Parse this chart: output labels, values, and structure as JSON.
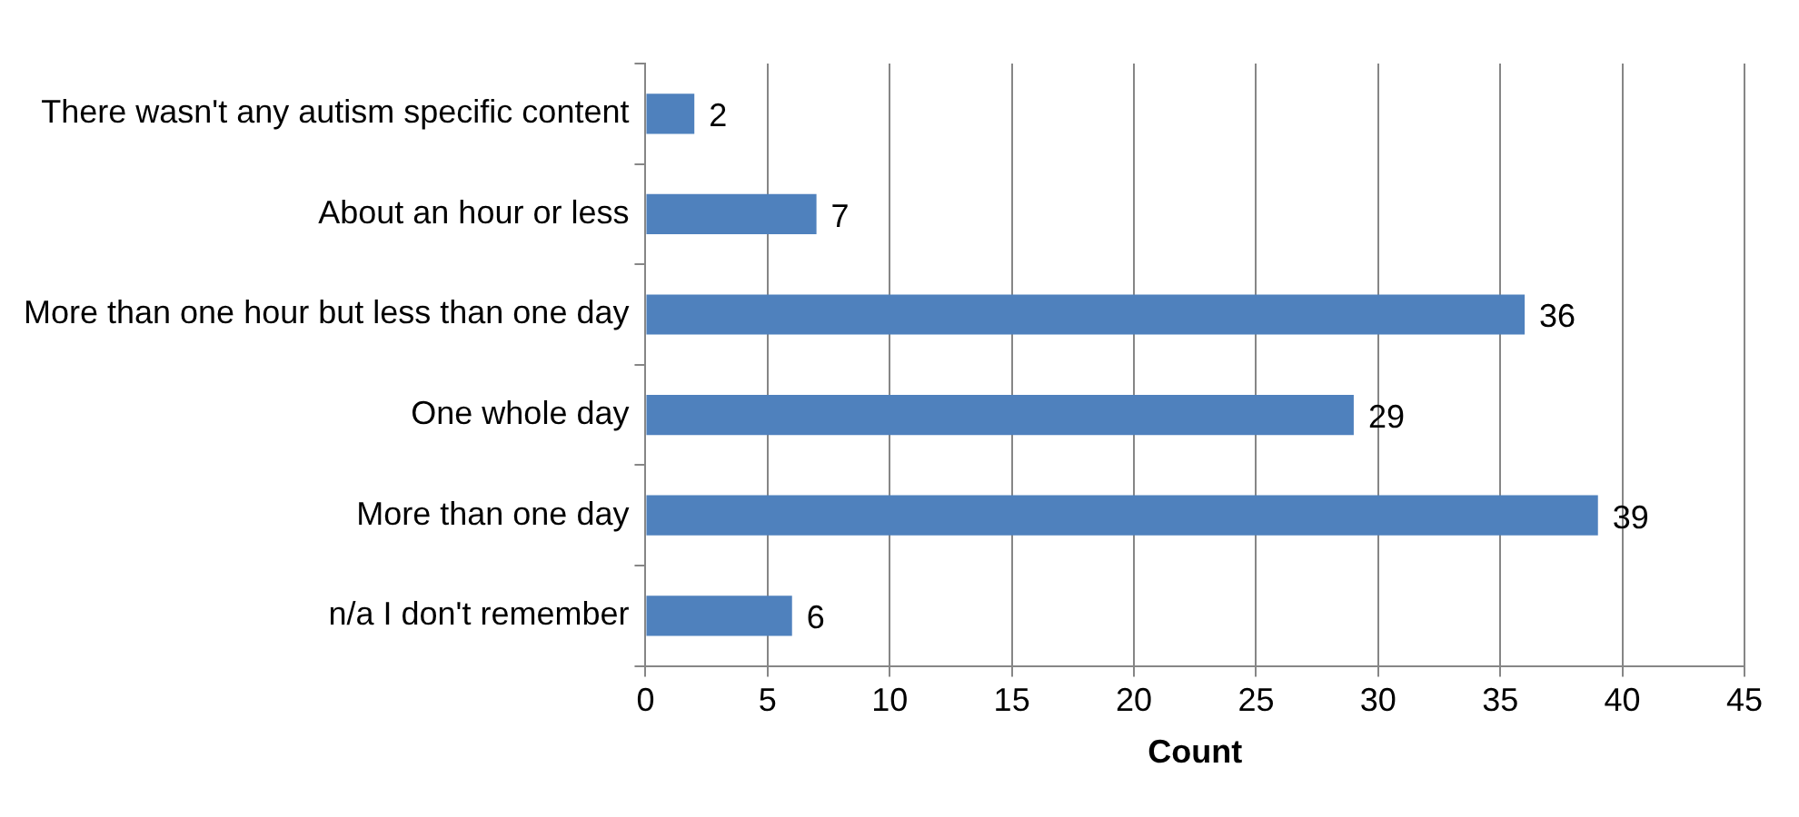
{
  "chart_data": {
    "type": "bar",
    "orientation": "horizontal",
    "xlabel": "Count",
    "categories": [
      "There wasn't any autism specific content",
      "About an hour or less",
      "More than one hour but less than one day",
      "One whole day",
      "More than one day",
      "n/a I don't remember"
    ],
    "values": [
      2,
      7,
      36,
      29,
      39,
      6
    ],
    "color": "#4f81bd",
    "xlim": [
      0,
      45
    ],
    "xticks": [
      0,
      5,
      10,
      15,
      20,
      25,
      30,
      35,
      40,
      45
    ],
    "grid": "x",
    "data_labels": true
  }
}
